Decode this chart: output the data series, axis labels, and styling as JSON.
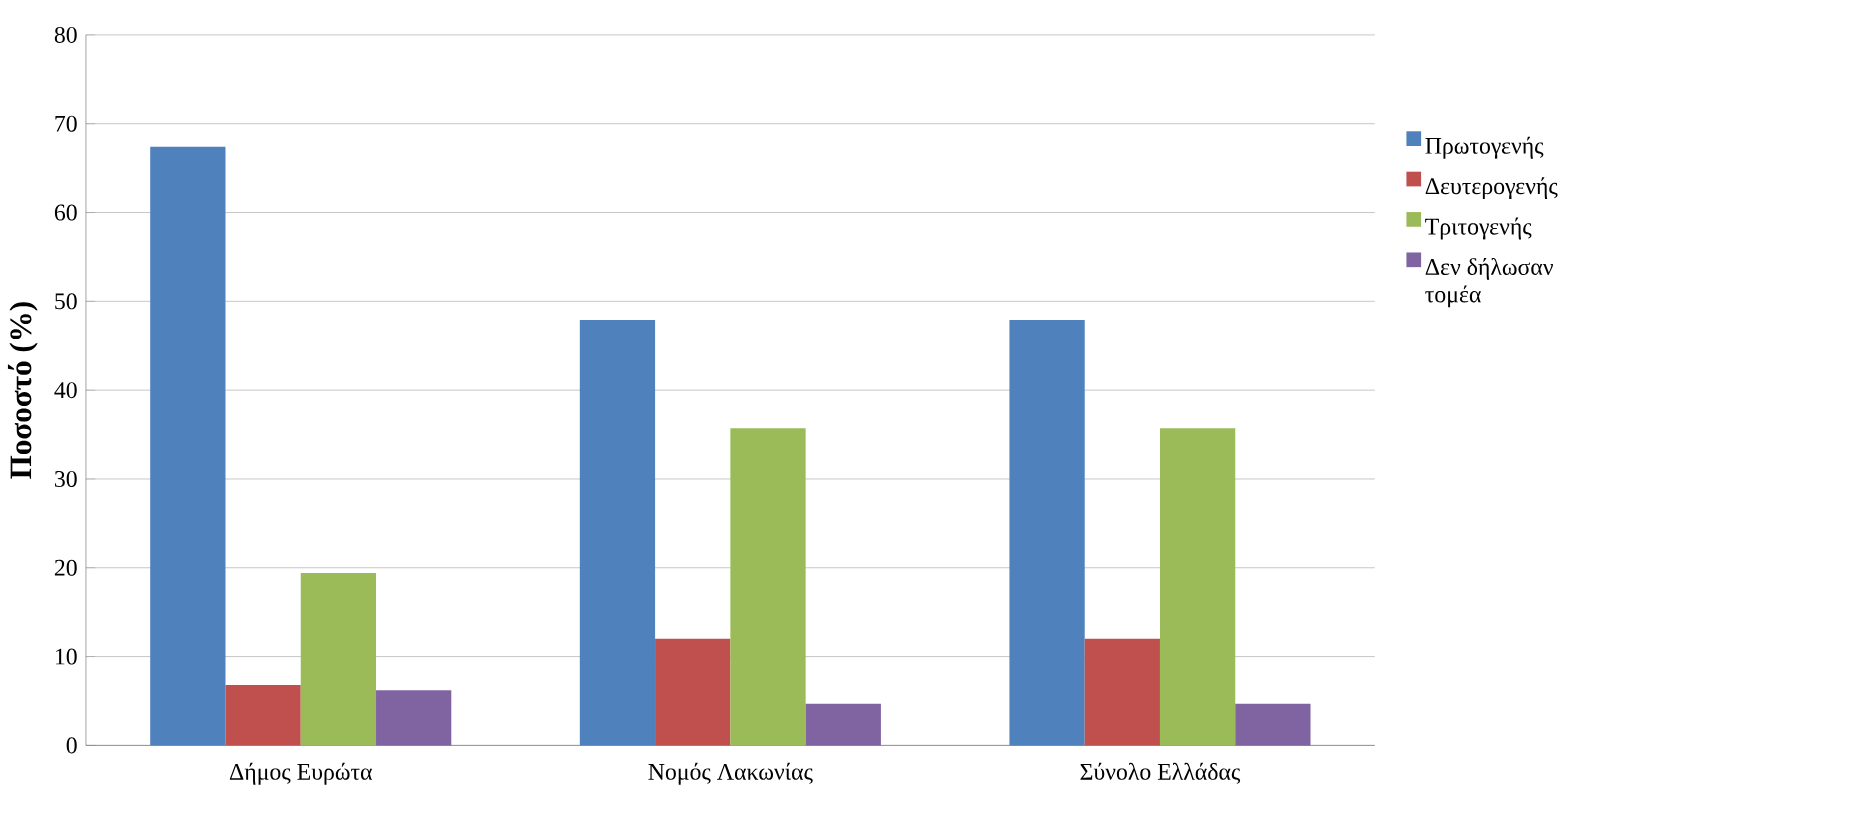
{
  "chart_data": {
    "type": "bar",
    "ylabel": "Ποσοστό (%)",
    "categories": [
      "Δήμος Ευρώτα",
      "Νομός Λακωνίας",
      "Σύνολο Ελλάδας"
    ],
    "series": [
      {
        "name": "Πρωτογενής",
        "color": "#4f81bd",
        "values": [
          67.4,
          47.9,
          47.9
        ]
      },
      {
        "name": "Δευτερογενής",
        "color": "#c0504d",
        "values": [
          6.8,
          12.0,
          12.0
        ]
      },
      {
        "name": "Τριτογενής",
        "color": "#9bbb59",
        "values": [
          19.4,
          35.7,
          35.7
        ]
      },
      {
        "name": "Δεν δήλωσαν τομέα",
        "color": "#8064a2",
        "values": [
          6.2,
          4.7,
          4.7
        ]
      }
    ],
    "ylim": [
      0,
      80
    ],
    "yticks": [
      0,
      10,
      20,
      30,
      40,
      50,
      60,
      70,
      80
    ],
    "grid": "y",
    "legend": "right"
  }
}
